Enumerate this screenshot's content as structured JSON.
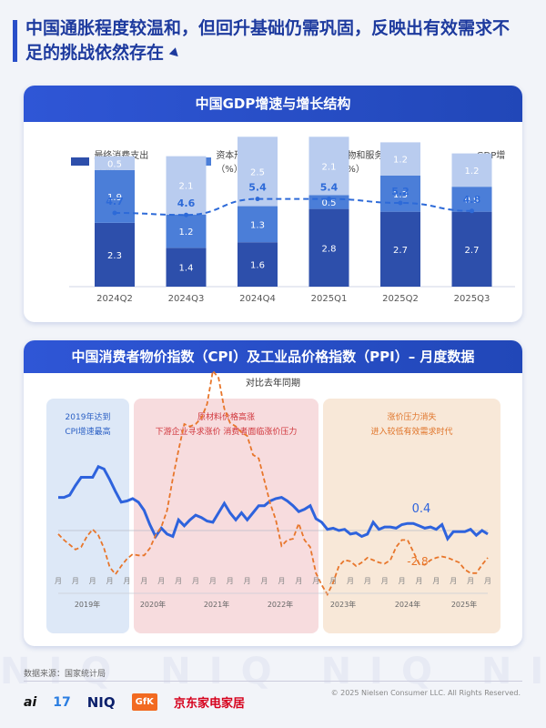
{
  "headline": "中国通胀程度较温和，但回升基础仍需巩固，反映出有效需求不足的挑战依然存在",
  "chart_data": [
    {
      "type": "bar",
      "title": "中国GDP增速与增长结构",
      "stacked": true,
      "categories": [
        "2024Q2",
        "2024Q3",
        "2024Q4",
        "2025Q1",
        "2025Q2",
        "2025Q3"
      ],
      "series": [
        {
          "name": "最终消费支出（%）",
          "color": "#2d4fab",
          "values": [
            2.3,
            1.4,
            1.6,
            2.8,
            2.7,
            2.7
          ]
        },
        {
          "name": "资本形成总额（%）",
          "color": "#4b7ed8",
          "values": [
            1.9,
            1.2,
            1.3,
            0.5,
            1.3,
            0.9
          ]
        },
        {
          "name": "货物和服务净出口（%）",
          "color": "#b9ccef",
          "values": [
            0.5,
            2.1,
            2.5,
            2.1,
            1.2,
            1.2
          ]
        }
      ],
      "line_series": {
        "name": "GDP增速",
        "color": "#2d6ad8",
        "style": "dashed",
        "values": [
          4.7,
          4.6,
          5.4,
          5.4,
          5.2,
          4.8
        ]
      },
      "ylim": [
        0,
        6
      ],
      "legend_position": "top"
    },
    {
      "type": "line",
      "title": "中国消费者物价指数（CPI）及工业品价格指数（PPI）– 月度数据",
      "subtitle": "对比去年同期",
      "x_start": "2019-07",
      "x_end": "2025-09",
      "ylim": [
        -8,
        11
      ],
      "series": [
        {
          "name": "CPI",
          "color": "#2e63dd",
          "style": "solid",
          "values": [
            2.8,
            2.8,
            3.0,
            3.8,
            4.5,
            4.5,
            4.5,
            5.4,
            5.2,
            4.3,
            3.3,
            2.4,
            2.5,
            2.7,
            2.4,
            1.7,
            0.5,
            -0.5,
            0.2,
            -0.3,
            -0.5,
            0.9,
            0.4,
            0.9,
            1.3,
            1.1,
            0.8,
            0.7,
            1.5,
            2.3,
            1.5,
            0.9,
            1.5,
            0.9,
            1.5,
            2.1,
            2.1,
            2.5,
            2.7,
            2.8,
            2.5,
            2.1,
            1.6,
            1.8,
            2.1,
            1.0,
            0.7,
            0.1,
            0.2,
            0.0,
            0.1,
            -0.3,
            -0.2,
            -0.5,
            -0.3,
            0.7,
            0.1,
            0.3,
            0.3,
            0.2,
            0.5,
            0.6,
            0.6,
            0.4,
            0.2,
            0.3,
            0.1,
            0.5,
            -0.7,
            -0.1,
            -0.1,
            -0.1,
            0.1,
            -0.4,
            0.0,
            -0.3
          ]
        },
        {
          "name": "PPI",
          "color": "#e8762b",
          "style": "dashed",
          "values": [
            -0.3,
            -0.8,
            -1.2,
            -1.6,
            -1.4,
            -0.5,
            0.1,
            -0.4,
            -1.5,
            -3.1,
            -3.7,
            -3.0,
            -2.4,
            -2.0,
            -2.1,
            -2.1,
            -1.5,
            -0.4,
            0.3,
            1.7,
            4.4,
            6.8,
            9.0,
            8.8,
            9.0,
            9.5,
            10.7,
            13.5,
            12.9,
            10.3,
            9.1,
            8.8,
            8.3,
            8.0,
            6.4,
            6.1,
            4.2,
            2.3,
            0.9,
            -1.3,
            -0.8,
            -0.7,
            0.6,
            -0.8,
            -1.4,
            -3.6,
            -4.6,
            -5.4,
            -4.4,
            -3.0,
            -2.5,
            -2.6,
            -3.0,
            -2.7,
            -2.3,
            -2.5,
            -2.7,
            -2.8,
            -2.5,
            -1.4,
            -0.8,
            -0.8,
            -1.8,
            -2.8,
            -2.9,
            -2.5,
            -2.3,
            -2.2,
            -2.3,
            -2.5,
            -2.7,
            -3.3,
            -3.6,
            -3.6,
            -2.9,
            -2.3
          ]
        }
      ],
      "label_cpi": "0.4",
      "label_ppi": "-2.8",
      "year_labels": [
        "2019年",
        "2020年",
        "2021年",
        "2022年",
        "2023年",
        "2024年",
        "2025年"
      ],
      "month_tick_label": "月",
      "zones": [
        {
          "text": [
            "2019年达到",
            "CPI增速最高"
          ],
          "color": "#dde8f7",
          "text_color": "#2a5fc4"
        },
        {
          "text": [
            "原材料价格高涨",
            "下游企业寻求涨价 消费者面临涨价压力"
          ],
          "color": "#f7dcde",
          "text_color": "#d0343a"
        },
        {
          "text": [
            "涨价压力消失",
            "进入较低有效需求时代"
          ],
          "color": "#f8e8d8",
          "text_color": "#e0752a"
        }
      ]
    }
  ],
  "footer": {
    "source": "数据来源：国家统计局",
    "copyright": "© 2025 Nielsen Consumer LLC. All Rights Reserved.",
    "logos": {
      "ai": "ai",
      "seventeen": "17",
      "niq": "NIQ",
      "gfk": "GfK",
      "jd": "京东家电家居"
    }
  },
  "watermark": "NIQ NIQ NIQ NIQ NIQ"
}
